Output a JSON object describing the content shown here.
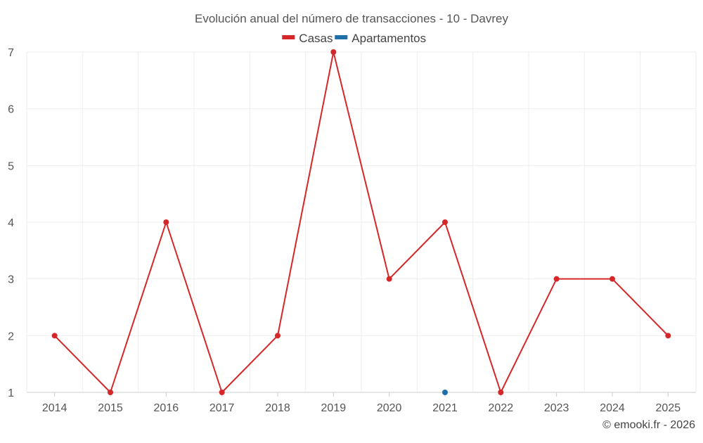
{
  "chart_data": {
    "type": "line",
    "title": "Evolución anual del número de transacciones - 10 - Davrey",
    "xlabel": "",
    "ylabel": "",
    "categories": [
      "2014",
      "2015",
      "2016",
      "2017",
      "2018",
      "2019",
      "2020",
      "2021",
      "2022",
      "2023",
      "2024",
      "2025"
    ],
    "ylim": [
      1,
      7
    ],
    "yticks": [
      1,
      2,
      3,
      4,
      5,
      6,
      7
    ],
    "grid": true,
    "legend_position": "top-center",
    "series": [
      {
        "name": "Casas",
        "color": "#d62728",
        "values": [
          2,
          1,
          4,
          1,
          2,
          7,
          3,
          4,
          1,
          3,
          3,
          2
        ]
      },
      {
        "name": "Apartamentos",
        "color": "#1f6fa8",
        "values": [
          null,
          null,
          null,
          null,
          null,
          null,
          null,
          1,
          null,
          null,
          null,
          null
        ]
      }
    ]
  },
  "footer": {
    "credit": "© emooki.fr - 2026"
  }
}
